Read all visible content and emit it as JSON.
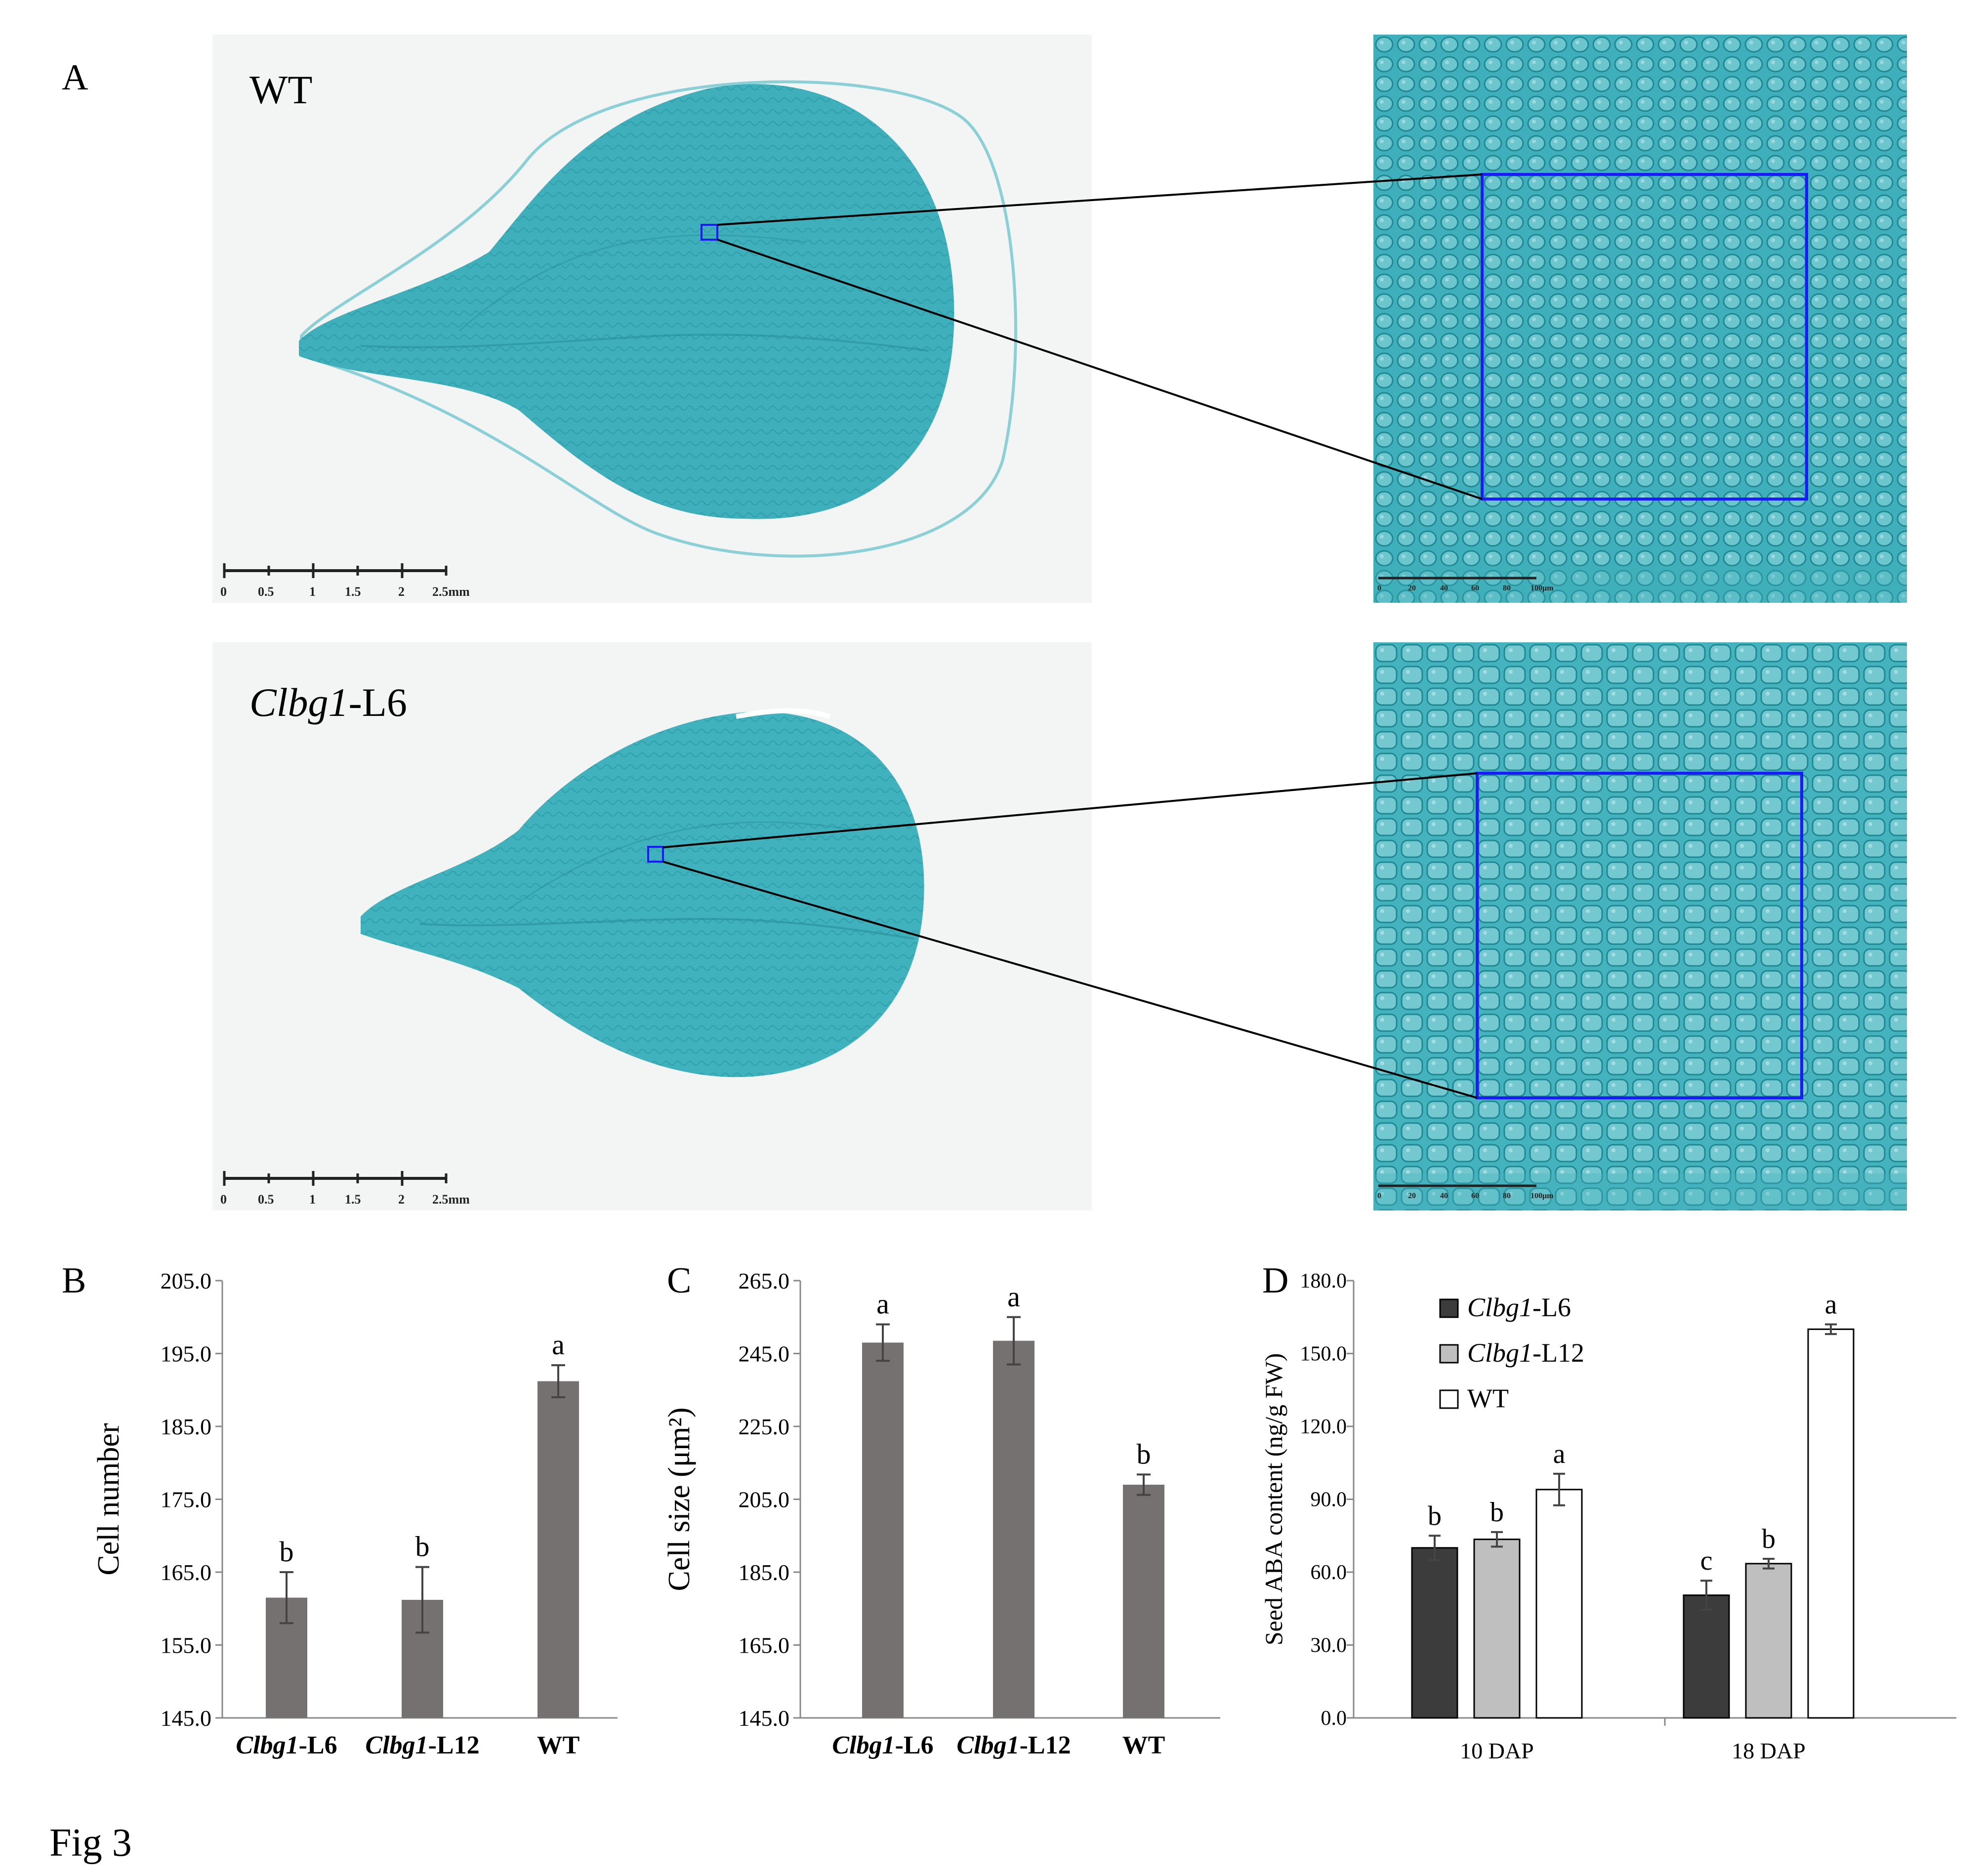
{
  "figure_label": "Fig 3",
  "panel_a": {
    "label": "A",
    "rows": [
      {
        "genotype": "WT",
        "italic_part": "",
        "plain_part": "WT",
        "scale_ticks": [
          "0",
          "0.5",
          "1",
          "1.5",
          "2",
          "2.5mm"
        ],
        "zoom_scale_ticks": [
          "0",
          "20",
          "40",
          "60",
          "80",
          "100μm"
        ]
      },
      {
        "genotype": "Clbg1-L6",
        "italic_part": "Clbg1",
        "plain_part": "-L6",
        "scale_ticks": [
          "0",
          "0.5",
          "1",
          "1.5",
          "2",
          "2.5mm"
        ],
        "zoom_scale_ticks": [
          "0",
          "20",
          "40",
          "60",
          "80",
          "100μm"
        ]
      }
    ],
    "colors": {
      "tissue": "#3fb0bb",
      "tissue_dark": "#2a9aa6",
      "background": "#f3f5f4",
      "box": "#1a1aff"
    }
  },
  "chart_data": [
    {
      "panel": "B",
      "type": "bar",
      "categories": [
        {
          "italic": "Clbg1",
          "plain": "-L6"
        },
        {
          "italic": "Clbg1",
          "plain": "-L12"
        },
        {
          "italic": "",
          "plain": "WT"
        }
      ],
      "values": [
        161.5,
        161.2,
        191.2
      ],
      "errors": [
        3.5,
        4.5,
        2.2
      ],
      "letters": [
        "b",
        "b",
        "a"
      ],
      "ylabel": "Cell number",
      "ylim": [
        145,
        205
      ],
      "yticks": [
        "145.0",
        "155.0",
        "165.0",
        "175.0",
        "185.0",
        "195.0",
        "205.0"
      ],
      "bar_color": "#767171"
    },
    {
      "panel": "C",
      "type": "bar",
      "categories": [
        {
          "italic": "Clbg1",
          "plain": "-L6"
        },
        {
          "italic": "Clbg1",
          "plain": "-L12"
        },
        {
          "italic": "",
          "plain": "WT"
        }
      ],
      "values": [
        248.0,
        248.5,
        209.0
      ],
      "errors": [
        5.0,
        6.5,
        2.8
      ],
      "letters": [
        "a",
        "a",
        "b"
      ],
      "ylabel": "Cell size (μm²)",
      "ylim": [
        145,
        265
      ],
      "yticks": [
        "145.0",
        "165.0",
        "185.0",
        "205.0",
        "225.0",
        "245.0",
        "265.0"
      ],
      "bar_color": "#767171"
    },
    {
      "panel": "D",
      "type": "bar",
      "categories": [
        "10 DAP",
        "18 DAP"
      ],
      "series": [
        {
          "name": "Clbg1-L6",
          "italic": "Clbg1",
          "plain": "-L6",
          "values": [
            70.0,
            50.5
          ],
          "errors": [
            5.0,
            6.0
          ],
          "letters": [
            "b",
            "c"
          ],
          "color": "#3c3c3c"
        },
        {
          "name": "Clbg1-L12",
          "italic": "Clbg1",
          "plain": "-L12",
          "values": [
            73.5,
            63.5
          ],
          "errors": [
            3.0,
            2.0
          ],
          "letters": [
            "b",
            "b"
          ],
          "color": "#bfbfbf"
        },
        {
          "name": "WT",
          "italic": "",
          "plain": "WT",
          "values": [
            94.0,
            160.0
          ],
          "errors": [
            6.5,
            2.0
          ],
          "letters": [
            "a",
            "a"
          ],
          "color": "#ffffff"
        }
      ],
      "ylabel": "Seed ABA content (ng/g FW)",
      "ylim": [
        0,
        180
      ],
      "yticks": [
        "0.0",
        "30.0",
        "60.0",
        "90.0",
        "120.0",
        "150.0",
        "180.0"
      ],
      "legend_position": "top-left"
    }
  ]
}
